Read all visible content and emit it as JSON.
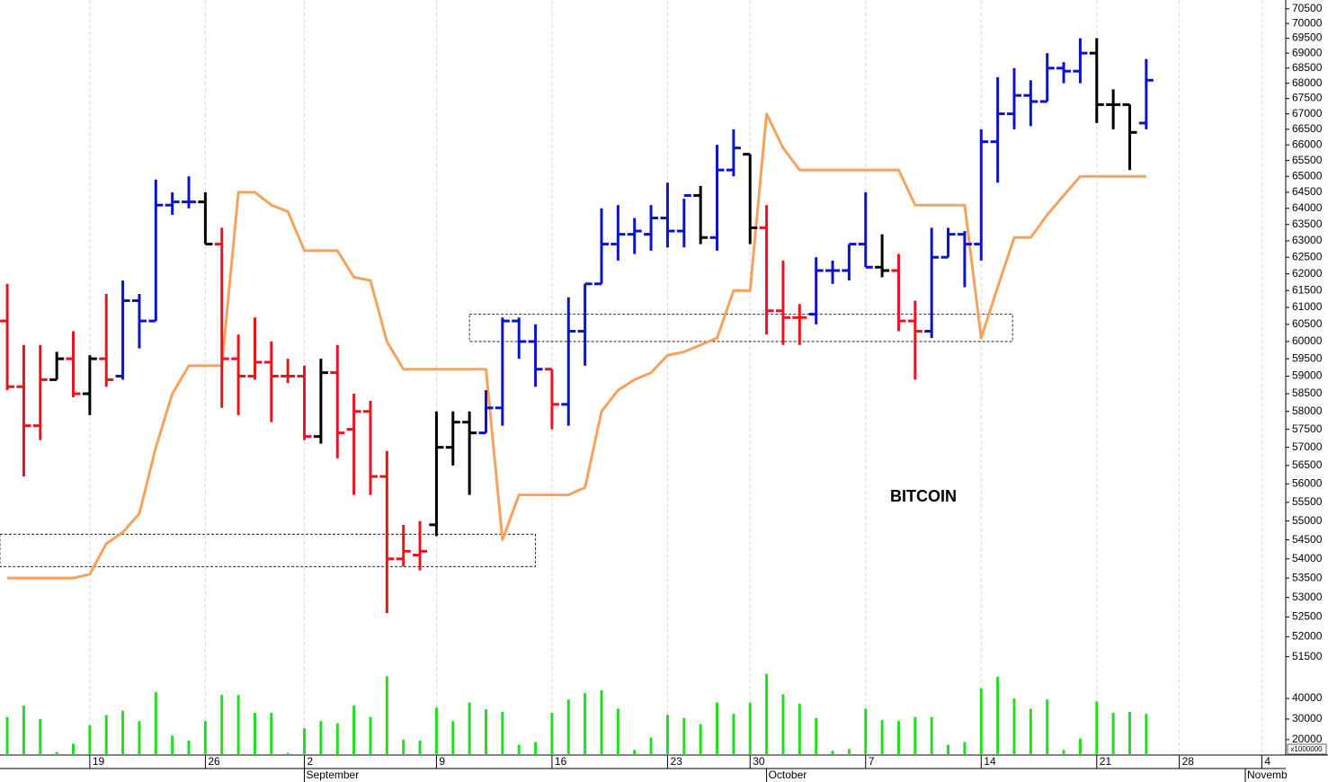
{
  "chart_data": {
    "type": "ohlc",
    "title": "BITCOIN",
    "log_scale": true,
    "ylim": [
      51200,
      70800
    ],
    "yticks": [
      51500,
      52000,
      52500,
      53000,
      53500,
      54000,
      54500,
      55000,
      55500,
      56000,
      56500,
      57000,
      57500,
      58000,
      58500,
      59000,
      59500,
      60000,
      60500,
      61000,
      61500,
      62000,
      62500,
      63000,
      63500,
      64000,
      64500,
      65000,
      65500,
      66000,
      66500,
      67000,
      67500,
      68000,
      68500,
      69000,
      69500,
      70000,
      70500
    ],
    "xlim": [
      -0.44,
      77.45
    ],
    "xticks": [
      {
        "value": 5,
        "label": "19"
      },
      {
        "value": 12,
        "label": "26"
      },
      {
        "value": 18,
        "label": "2"
      },
      {
        "value": 26,
        "label": "9"
      },
      {
        "value": 33,
        "label": "16"
      },
      {
        "value": 40,
        "label": "23"
      },
      {
        "value": 45,
        "label": "30"
      },
      {
        "value": 52,
        "label": "7"
      },
      {
        "value": 59,
        "label": "14"
      },
      {
        "value": 66,
        "label": "21"
      },
      {
        "value": 71,
        "label": "28"
      },
      {
        "value": 76,
        "label": "4"
      }
    ],
    "month_ticks": [
      {
        "value": 18,
        "label": "September"
      },
      {
        "value": 46,
        "label": "October"
      },
      {
        "value": 75,
        "label": "Novemb"
      }
    ],
    "grid": true,
    "open": [
      60600,
      58700,
      57600,
      58900,
      59500,
      58500,
      59500,
      59000,
      61200,
      60600,
      64100,
      64200,
      64200,
      62900,
      59500,
      59000,
      59400,
      59000,
      59000,
      57300,
      59100,
      57500,
      58000,
      56200,
      54000,
      54100,
      54900,
      57000,
      57700,
      57400,
      58100,
      60600,
      60000,
      59200,
      58200,
      60300,
      61700,
      62900,
      63200,
      63200,
      63700,
      63300,
      64400,
      63100,
      65200,
      65700,
      63400,
      60900,
      60700,
      60800,
      62100,
      62100,
      62900,
      62200,
      62100,
      60600,
      60300,
      62500,
      63200,
      62900,
      66100,
      67000,
      67600,
      67400,
      68500,
      68400,
      69000,
      67300,
      67300,
      66700
    ],
    "high": [
      61700,
      59900,
      59900,
      59700,
      60300,
      59600,
      61400,
      61800,
      61400,
      64900,
      64500,
      65000,
      64500,
      63400,
      60200,
      60700,
      60000,
      59500,
      59300,
      59500,
      59900,
      58500,
      58300,
      56900,
      54900,
      55000,
      58000,
      58000,
      58000,
      58600,
      60700,
      60700,
      60500,
      59200,
      61300,
      61700,
      64000,
      64100,
      63700,
      64100,
      64800,
      64300,
      64700,
      66000,
      66500,
      65700,
      64100,
      62400,
      61100,
      62500,
      62400,
      62900,
      64500,
      63200,
      62600,
      61200,
      63400,
      63400,
      63300,
      66500,
      68200,
      68500,
      68100,
      69000,
      68700,
      69500,
      69500,
      67800,
      67300,
      68800
    ],
    "low": [
      58600,
      56200,
      57200,
      58900,
      58400,
      57900,
      58700,
      58900,
      59800,
      60600,
      63800,
      64000,
      62900,
      58100,
      57900,
      58900,
      57700,
      58800,
      57200,
      57100,
      56700,
      55700,
      55700,
      52600,
      53800,
      53700,
      54600,
      56500,
      55700,
      57400,
      57600,
      59500,
      58700,
      57500,
      57600,
      59300,
      61700,
      62400,
      62600,
      62700,
      62800,
      62800,
      62900,
      62700,
      65000,
      62900,
      60200,
      59900,
      59900,
      60500,
      61700,
      61800,
      62200,
      61900,
      60300,
      58900,
      60100,
      62500,
      61600,
      62400,
      64800,
      66500,
      66600,
      67400,
      68000,
      68000,
      66700,
      66500,
      65200,
      66500
    ],
    "close": [
      58700,
      57600,
      58900,
      59500,
      58500,
      59500,
      58900,
      61200,
      60600,
      64100,
      64200,
      64200,
      62900,
      59500,
      59000,
      59400,
      59000,
      59000,
      57300,
      59100,
      57400,
      58000,
      56200,
      54000,
      54200,
      54200,
      57000,
      57700,
      57400,
      58100,
      60600,
      60000,
      59200,
      58200,
      60300,
      61700,
      62900,
      63200,
      63300,
      63700,
      63300,
      64400,
      63100,
      65200,
      65900,
      63400,
      60900,
      60700,
      60700,
      62100,
      62100,
      62900,
      62200,
      62100,
      60600,
      60300,
      62500,
      63200,
      62900,
      66100,
      67000,
      67600,
      67400,
      68500,
      68400,
      69000,
      67300,
      67300,
      66400,
      68100
    ],
    "bar_colors": [
      "#e8141e",
      "#e8141e",
      "#e8141e",
      "#000000",
      "#e8141e",
      "#000000",
      "#e8141e",
      "#0c14c8",
      "#0c14c8",
      "#0c14c8",
      "#0c14c8",
      "#0c14c8",
      "#000000",
      "#e8141e",
      "#e8141e",
      "#e8141e",
      "#e8141e",
      "#e8141e",
      "#e8141e",
      "#000000",
      "#e8141e",
      "#e8141e",
      "#e8141e",
      "#e8141e",
      "#e8141e",
      "#e8141e",
      "#000000",
      "#000000",
      "#000000",
      "#0c14c8",
      "#0c14c8",
      "#0c14c8",
      "#0c14c8",
      "#e8141e",
      "#0c14c8",
      "#0c14c8",
      "#0c14c8",
      "#0c14c8",
      "#0c14c8",
      "#0c14c8",
      "#0c14c8",
      "#0c14c8",
      "#000000",
      "#0c14c8",
      "#0c14c8",
      "#000000",
      "#e8141e",
      "#e8141e",
      "#e8141e",
      "#0c14c8",
      "#0c14c8",
      "#0c14c8",
      "#0c14c8",
      "#000000",
      "#e8141e",
      "#e8141e",
      "#0c14c8",
      "#0c14c8",
      "#0c14c8",
      "#0c14c8",
      "#0c14c8",
      "#0c14c8",
      "#0c14c8",
      "#0c14c8",
      "#0c14c8",
      "#0c14c8",
      "#000000",
      "#000000",
      "#000000",
      "#0c14c8"
    ],
    "line": {
      "color": "#f5a25c",
      "values": [
        53500,
        53500,
        53500,
        53500,
        53500,
        53600,
        54400,
        54700,
        55200,
        57000,
        58500,
        59300,
        59300,
        59300,
        64500,
        64500,
        64100,
        63900,
        62700,
        62700,
        62700,
        61900,
        61800,
        60000,
        59200,
        59200,
        59200,
        59200,
        59200,
        59200,
        54500,
        55700,
        55700,
        55700,
        55700,
        55900,
        58000,
        58600,
        58900,
        59100,
        59600,
        59700,
        59900,
        60100,
        61500,
        61500,
        67000,
        65900,
        65200,
        65200,
        65200,
        65200,
        65200,
        65200,
        65200,
        64100,
        64100,
        64100,
        64100,
        60100,
        61600,
        63100,
        63100,
        63800,
        64400,
        65000,
        65000,
        65000,
        65000,
        65000
      ]
    },
    "zones": [
      {
        "x": [
          -0.44,
          32
        ],
        "y": [
          53800,
          54650
        ]
      },
      {
        "x": [
          28,
          60.9
        ],
        "y": [
          60000,
          60800
        ]
      }
    ],
    "volume": {
      "color": "#22dd22",
      "unit": "x1000000",
      "ylim": [
        12500,
        54000
      ],
      "yticks": [
        20000,
        30000,
        40000
      ],
      "values": [
        31000,
        36500,
        30000,
        14000,
        18000,
        27000,
        32000,
        34000,
        29000,
        43000,
        22000,
        19500,
        29000,
        41700,
        41700,
        33000,
        33000,
        13500,
        25500,
        29000,
        28000,
        36500,
        31000,
        50800,
        20000,
        19500,
        35500,
        29000,
        38000,
        34700,
        33500,
        17500,
        18800,
        33000,
        39500,
        42600,
        44000,
        35000,
        15000,
        21000,
        32000,
        30500,
        27500,
        38000,
        32500,
        38000,
        52000,
        42000,
        37500,
        30500,
        14500,
        15400,
        35000,
        29500,
        29000,
        31000,
        31000,
        17500,
        18800,
        45000,
        50500,
        40000,
        35000,
        39500,
        15000,
        20500,
        38500,
        33000,
        33500,
        32500
      ]
    }
  }
}
